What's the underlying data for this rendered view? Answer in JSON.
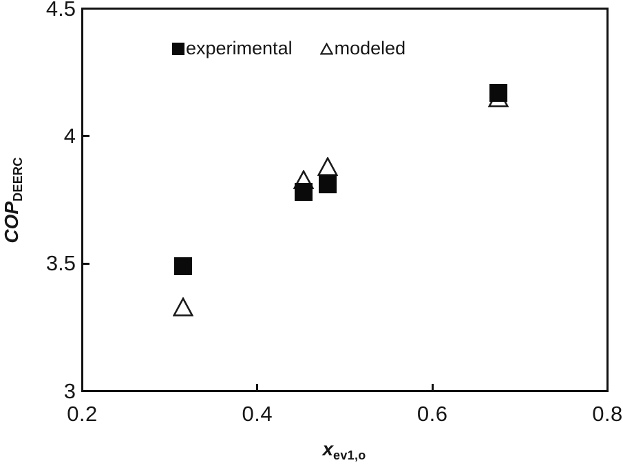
{
  "figure": {
    "background_color": "#ffffff",
    "frame_color": "#111111",
    "marker_color": "#0a0a0a"
  },
  "chart_data": {
    "type": "scatter",
    "title": "",
    "xlabel": "x_ev1,o",
    "ylabel": "COP_DEERC",
    "xlabel_parts": {
      "main": "x",
      "sub": "ev1,o"
    },
    "ylabel_parts": {
      "main": "COP",
      "sub": "DEERC"
    },
    "xlim": [
      0.2,
      0.8
    ],
    "ylim": [
      3,
      4.5
    ],
    "x_ticks": [
      0.2,
      0.4,
      0.6,
      0.8
    ],
    "y_ticks": [
      3,
      3.5,
      4,
      4.5
    ],
    "grid": false,
    "frame": "full-box",
    "legend_position": "top-center-inside",
    "series": [
      {
        "name": "experimental",
        "marker": "filled-square",
        "color": "#0a0a0a",
        "points": [
          [
            0.315,
            3.49
          ],
          [
            0.453,
            3.78
          ],
          [
            0.48,
            3.81
          ],
          [
            0.675,
            4.17
          ]
        ]
      },
      {
        "name": "modeled",
        "marker": "open-triangle",
        "color": "#1a1a1a",
        "points": [
          [
            0.315,
            3.33
          ],
          [
            0.453,
            3.83
          ],
          [
            0.48,
            3.88
          ],
          [
            0.675,
            4.15
          ]
        ]
      }
    ]
  }
}
